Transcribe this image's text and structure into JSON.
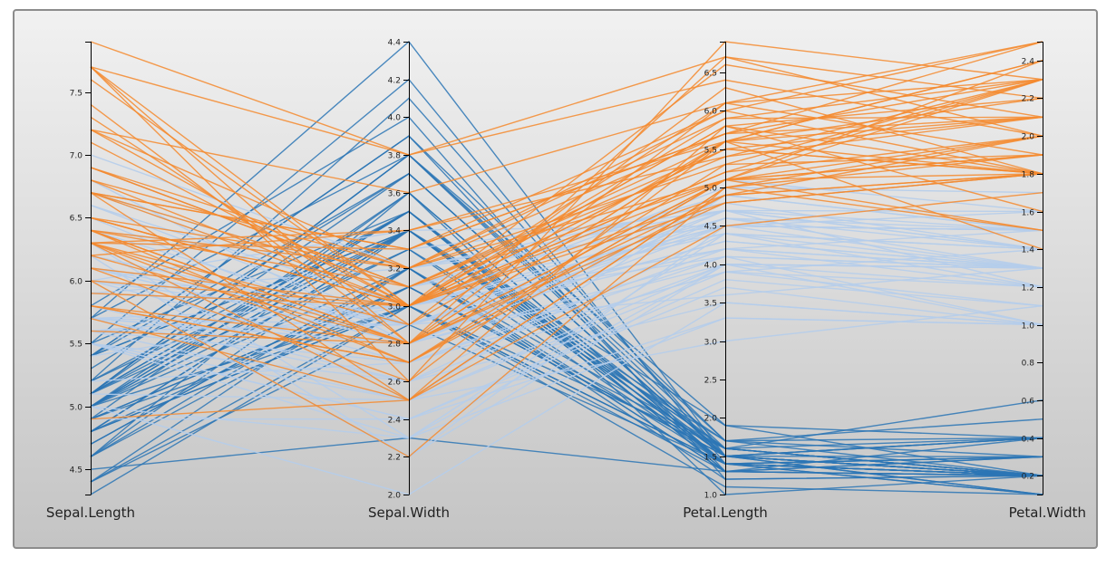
{
  "colors": {
    "setosa": "#2b76b5",
    "versicolor": "#b5cdeb",
    "virginica": "#f48a2e"
  },
  "chart_data": {
    "type": "parallel-coordinates",
    "title": "",
    "axes": [
      {
        "name": "Sepal.Length",
        "range": [
          4.3,
          7.9
        ],
        "ticks": [
          "4.5",
          "5.0",
          "5.5",
          "6.0",
          "6.5",
          "7.0",
          "7.5"
        ]
      },
      {
        "name": "Sepal.Width",
        "range": [
          2.0,
          4.4
        ],
        "ticks": [
          "2.0",
          "2.2",
          "2.4",
          "2.6",
          "2.8",
          "3.0",
          "3.2",
          "3.4",
          "3.6",
          "3.8",
          "4.0",
          "4.2",
          "4.4"
        ]
      },
      {
        "name": "Petal.Length",
        "range": [
          1.0,
          6.9
        ],
        "ticks": [
          "1.0",
          "1.5",
          "2.0",
          "2.5",
          "3.0",
          "3.5",
          "4.0",
          "4.5",
          "5.0",
          "5.5",
          "6.0",
          "6.5"
        ]
      },
      {
        "name": "Petal.Width",
        "range": [
          0.1,
          2.5
        ],
        "ticks": [
          "0.2",
          "0.4",
          "0.6",
          "0.8",
          "1.0",
          "1.2",
          "1.4",
          "1.6",
          "1.8",
          "2.0",
          "2.2",
          "2.4"
        ]
      }
    ],
    "series": [
      {
        "color_key": "setosa",
        "rows": [
          [
            5.1,
            3.5,
            1.4,
            0.2
          ],
          [
            4.9,
            3.0,
            1.4,
            0.2
          ],
          [
            4.7,
            3.2,
            1.3,
            0.2
          ],
          [
            4.6,
            3.1,
            1.5,
            0.2
          ],
          [
            5.0,
            3.6,
            1.4,
            0.2
          ],
          [
            5.4,
            3.9,
            1.7,
            0.4
          ],
          [
            4.6,
            3.4,
            1.4,
            0.3
          ],
          [
            5.0,
            3.4,
            1.5,
            0.2
          ],
          [
            4.4,
            2.9,
            1.4,
            0.2
          ],
          [
            4.9,
            3.1,
            1.5,
            0.1
          ],
          [
            5.4,
            3.7,
            1.5,
            0.2
          ],
          [
            4.8,
            3.4,
            1.6,
            0.2
          ],
          [
            4.8,
            3.0,
            1.4,
            0.1
          ],
          [
            4.3,
            3.0,
            1.1,
            0.1
          ],
          [
            5.8,
            4.0,
            1.2,
            0.2
          ],
          [
            5.7,
            4.4,
            1.5,
            0.4
          ],
          [
            5.4,
            3.9,
            1.3,
            0.4
          ],
          [
            5.1,
            3.5,
            1.4,
            0.3
          ],
          [
            5.7,
            3.8,
            1.7,
            0.3
          ],
          [
            5.1,
            3.8,
            1.5,
            0.3
          ],
          [
            5.4,
            3.4,
            1.7,
            0.2
          ],
          [
            5.1,
            3.7,
            1.5,
            0.4
          ],
          [
            4.6,
            3.6,
            1.0,
            0.2
          ],
          [
            5.1,
            3.3,
            1.7,
            0.5
          ],
          [
            4.8,
            3.4,
            1.9,
            0.2
          ],
          [
            5.0,
            3.0,
            1.6,
            0.2
          ],
          [
            5.0,
            3.4,
            1.6,
            0.4
          ],
          [
            5.2,
            3.5,
            1.5,
            0.2
          ],
          [
            5.2,
            3.4,
            1.4,
            0.2
          ],
          [
            4.7,
            3.2,
            1.6,
            0.2
          ],
          [
            4.8,
            3.1,
            1.6,
            0.2
          ],
          [
            5.4,
            3.4,
            1.5,
            0.4
          ],
          [
            5.2,
            4.1,
            1.5,
            0.1
          ],
          [
            5.5,
            4.2,
            1.4,
            0.2
          ],
          [
            4.9,
            3.1,
            1.5,
            0.2
          ],
          [
            5.0,
            3.2,
            1.2,
            0.2
          ],
          [
            5.5,
            3.5,
            1.3,
            0.2
          ],
          [
            4.9,
            3.6,
            1.4,
            0.1
          ],
          [
            4.4,
            3.0,
            1.3,
            0.2
          ],
          [
            5.1,
            3.4,
            1.5,
            0.2
          ],
          [
            5.0,
            3.5,
            1.3,
            0.3
          ],
          [
            4.5,
            2.3,
            1.3,
            0.3
          ],
          [
            4.4,
            3.2,
            1.3,
            0.2
          ],
          [
            5.0,
            3.5,
            1.6,
            0.6
          ],
          [
            5.1,
            3.8,
            1.9,
            0.4
          ],
          [
            4.8,
            3.0,
            1.4,
            0.3
          ],
          [
            5.1,
            3.8,
            1.6,
            0.2
          ],
          [
            4.6,
            3.2,
            1.4,
            0.2
          ],
          [
            5.3,
            3.7,
            1.5,
            0.2
          ],
          [
            5.0,
            3.3,
            1.4,
            0.2
          ]
        ]
      },
      {
        "color_key": "versicolor",
        "rows": [
          [
            7.0,
            3.2,
            4.7,
            1.4
          ],
          [
            6.4,
            3.2,
            4.5,
            1.5
          ],
          [
            6.9,
            3.1,
            4.9,
            1.5
          ],
          [
            5.5,
            2.3,
            4.0,
            1.3
          ],
          [
            6.5,
            2.8,
            4.6,
            1.5
          ],
          [
            5.7,
            2.8,
            4.5,
            1.3
          ],
          [
            6.3,
            3.3,
            4.7,
            1.6
          ],
          [
            4.9,
            2.4,
            3.3,
            1.0
          ],
          [
            6.6,
            2.9,
            4.6,
            1.3
          ],
          [
            5.2,
            2.7,
            3.9,
            1.4
          ],
          [
            5.0,
            2.0,
            3.5,
            1.0
          ],
          [
            5.9,
            3.0,
            4.2,
            1.5
          ],
          [
            6.0,
            2.2,
            4.0,
            1.0
          ],
          [
            6.1,
            2.9,
            4.7,
            1.4
          ],
          [
            5.6,
            2.9,
            3.6,
            1.3
          ],
          [
            6.7,
            3.1,
            4.4,
            1.4
          ],
          [
            5.6,
            3.0,
            4.5,
            1.5
          ],
          [
            5.8,
            2.7,
            4.1,
            1.0
          ],
          [
            6.2,
            2.2,
            4.5,
            1.5
          ],
          [
            5.6,
            2.5,
            3.9,
            1.1
          ],
          [
            5.9,
            3.2,
            4.8,
            1.8
          ],
          [
            6.1,
            2.8,
            4.0,
            1.3
          ],
          [
            6.3,
            2.5,
            4.9,
            1.5
          ],
          [
            6.1,
            2.8,
            4.7,
            1.2
          ],
          [
            6.4,
            2.9,
            4.3,
            1.3
          ],
          [
            6.6,
            3.0,
            4.4,
            1.4
          ],
          [
            6.8,
            2.8,
            4.8,
            1.4
          ],
          [
            6.7,
            3.0,
            5.0,
            1.7
          ],
          [
            6.0,
            2.9,
            4.5,
            1.5
          ],
          [
            5.7,
            2.6,
            3.5,
            1.0
          ],
          [
            5.5,
            2.4,
            3.8,
            1.1
          ],
          [
            5.5,
            2.4,
            3.7,
            1.0
          ],
          [
            5.8,
            2.7,
            3.9,
            1.2
          ],
          [
            6.0,
            2.7,
            5.1,
            1.6
          ],
          [
            5.4,
            3.0,
            4.5,
            1.5
          ],
          [
            6.0,
            3.4,
            4.5,
            1.6
          ],
          [
            6.7,
            3.1,
            4.7,
            1.5
          ],
          [
            6.3,
            2.3,
            4.4,
            1.3
          ],
          [
            5.6,
            3.0,
            4.1,
            1.3
          ],
          [
            5.5,
            2.5,
            4.0,
            1.3
          ],
          [
            5.5,
            2.6,
            4.4,
            1.2
          ],
          [
            6.1,
            3.0,
            4.6,
            1.4
          ],
          [
            5.8,
            2.6,
            4.0,
            1.2
          ],
          [
            5.0,
            2.3,
            3.3,
            1.0
          ],
          [
            5.6,
            2.7,
            4.2,
            1.3
          ],
          [
            5.7,
            3.0,
            4.2,
            1.2
          ],
          [
            5.7,
            2.9,
            4.2,
            1.3
          ],
          [
            6.2,
            2.9,
            4.3,
            1.3
          ],
          [
            5.1,
            2.5,
            3.0,
            1.1
          ],
          [
            5.7,
            2.8,
            4.1,
            1.3
          ]
        ]
      },
      {
        "color_key": "virginica",
        "rows": [
          [
            6.3,
            3.3,
            6.0,
            2.5
          ],
          [
            5.8,
            2.7,
            5.1,
            1.9
          ],
          [
            7.1,
            3.0,
            5.9,
            2.1
          ],
          [
            6.3,
            2.9,
            5.6,
            1.8
          ],
          [
            6.5,
            3.0,
            5.8,
            2.2
          ],
          [
            7.6,
            3.0,
            6.6,
            2.1
          ],
          [
            4.9,
            2.5,
            4.5,
            1.7
          ],
          [
            7.3,
            2.9,
            6.3,
            1.8
          ],
          [
            6.7,
            2.5,
            5.8,
            1.8
          ],
          [
            7.2,
            3.6,
            6.1,
            2.5
          ],
          [
            6.5,
            3.2,
            5.1,
            2.0
          ],
          [
            6.4,
            2.7,
            5.3,
            1.9
          ],
          [
            6.8,
            3.0,
            5.5,
            2.1
          ],
          [
            5.7,
            2.5,
            5.0,
            2.0
          ],
          [
            5.8,
            2.8,
            5.1,
            2.4
          ],
          [
            6.4,
            3.2,
            5.3,
            2.3
          ],
          [
            6.5,
            3.0,
            5.5,
            1.8
          ],
          [
            7.7,
            3.8,
            6.7,
            2.2
          ],
          [
            7.7,
            2.6,
            6.9,
            2.3
          ],
          [
            6.0,
            2.2,
            5.0,
            1.5
          ],
          [
            6.9,
            3.2,
            5.7,
            2.3
          ],
          [
            5.6,
            2.8,
            4.9,
            2.0
          ],
          [
            7.7,
            2.8,
            6.7,
            2.0
          ],
          [
            6.3,
            2.7,
            4.9,
            1.8
          ],
          [
            6.7,
            3.3,
            5.7,
            2.1
          ],
          [
            7.2,
            3.2,
            6.0,
            1.8
          ],
          [
            6.2,
            2.8,
            4.8,
            1.8
          ],
          [
            6.1,
            3.0,
            4.9,
            1.8
          ],
          [
            6.4,
            2.8,
            5.6,
            2.1
          ],
          [
            7.2,
            3.0,
            5.8,
            1.6
          ],
          [
            7.4,
            2.8,
            6.1,
            1.9
          ],
          [
            7.9,
            3.8,
            6.4,
            2.0
          ],
          [
            6.4,
            2.8,
            5.6,
            2.2
          ],
          [
            6.3,
            2.8,
            5.1,
            1.5
          ],
          [
            6.1,
            2.6,
            5.6,
            1.4
          ],
          [
            7.7,
            3.0,
            6.1,
            2.3
          ],
          [
            6.3,
            3.4,
            5.6,
            2.4
          ],
          [
            6.4,
            3.1,
            5.5,
            1.8
          ],
          [
            6.0,
            3.0,
            4.8,
            1.8
          ],
          [
            6.9,
            3.1,
            5.4,
            2.1
          ],
          [
            6.7,
            3.1,
            5.6,
            2.4
          ],
          [
            6.9,
            3.1,
            5.1,
            2.3
          ],
          [
            5.8,
            2.7,
            5.1,
            1.9
          ],
          [
            6.8,
            3.2,
            5.9,
            2.3
          ],
          [
            6.7,
            3.3,
            5.7,
            2.5
          ],
          [
            6.7,
            3.0,
            5.2,
            2.3
          ],
          [
            6.3,
            2.5,
            5.0,
            1.9
          ],
          [
            6.5,
            3.0,
            5.2,
            2.0
          ],
          [
            6.2,
            3.4,
            5.4,
            2.3
          ],
          [
            5.9,
            3.0,
            5.1,
            1.8
          ]
        ]
      }
    ]
  }
}
